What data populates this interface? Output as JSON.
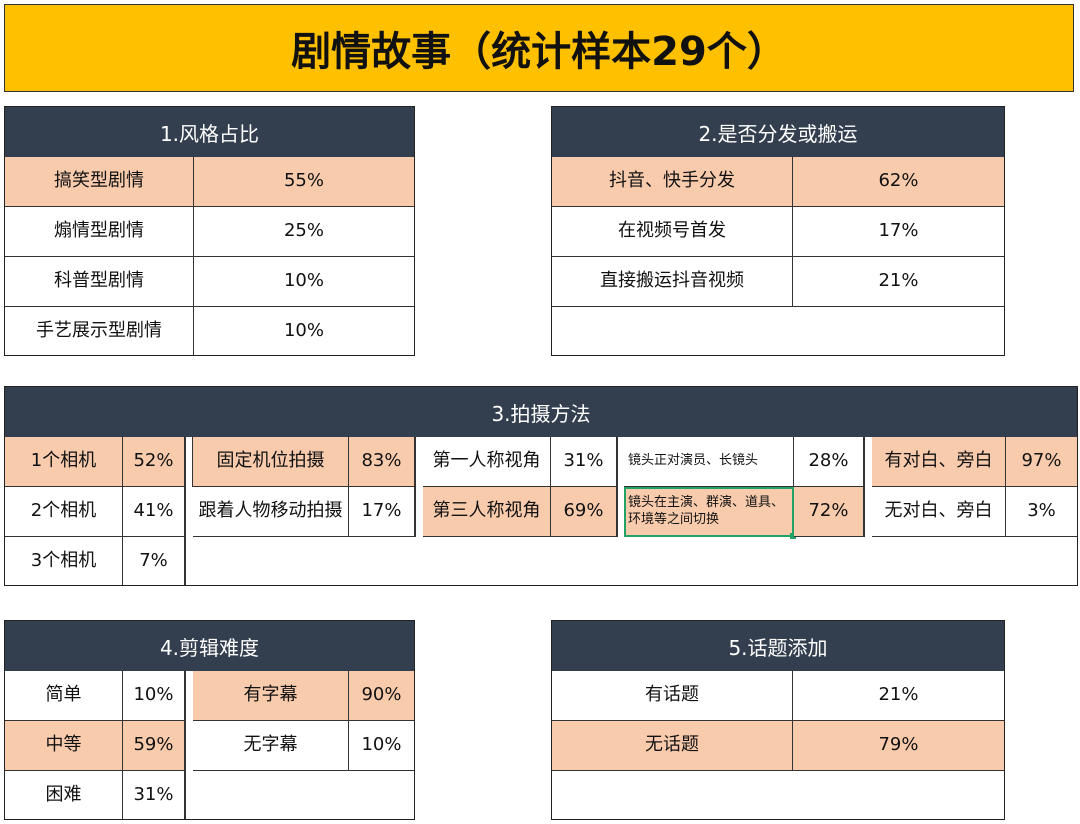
{
  "title": "剧情故事（统计样本29个）",
  "colors": {
    "banner": "#ffc000",
    "header": "#333f4f",
    "highlight": "#f8cbad"
  },
  "sections": {
    "style": {
      "header": "1.风格占比",
      "rows": [
        {
          "label": "搞笑型剧情",
          "value": "55%"
        },
        {
          "label": "煽情型剧情",
          "value": "25%"
        },
        {
          "label": "科普型剧情",
          "value": "10%"
        },
        {
          "label": "手艺展示型剧情",
          "value": "10%"
        }
      ]
    },
    "distribution": {
      "header": "2.是否分发或搬运",
      "rows": [
        {
          "label": "抖音、快手分发",
          "value": "62%"
        },
        {
          "label": "在视频号首发",
          "value": "17%"
        },
        {
          "label": "直接搬运抖音视频",
          "value": "21%"
        }
      ]
    },
    "shooting": {
      "header": "3.拍摄方法",
      "cameras": [
        {
          "label": "1个相机",
          "value": "52%"
        },
        {
          "label": "2个相机",
          "value": "41%"
        },
        {
          "label": "3个相机",
          "value": "7%"
        }
      ],
      "positions": [
        {
          "label": "固定机位拍摄",
          "value": "83%"
        },
        {
          "label": "跟着人物移动拍摄",
          "value": "17%"
        }
      ],
      "perspective": [
        {
          "label": "第一人称视角",
          "value": "31%"
        },
        {
          "label": "第三人称视角",
          "value": "69%"
        }
      ],
      "lens": [
        {
          "label": "镜头正对演员、长镜头",
          "value": "28%"
        },
        {
          "label": "镜头在主演、群演、道具、环境等之间切换",
          "value": "72%"
        }
      ],
      "dialogue": [
        {
          "label": "有对白、旁白",
          "value": "97%"
        },
        {
          "label": "无对白、旁白",
          "value": "3%"
        }
      ]
    },
    "editing": {
      "header": "4.剪辑难度",
      "difficulty": [
        {
          "label": "简单",
          "value": "10%"
        },
        {
          "label": "中等",
          "value": "59%"
        },
        {
          "label": "困难",
          "value": "31%"
        }
      ],
      "subtitles": [
        {
          "label": "有字幕",
          "value": "90%"
        },
        {
          "label": "无字幕",
          "value": "10%"
        }
      ]
    },
    "topics": {
      "header": "5.话题添加",
      "rows": [
        {
          "label": "有话题",
          "value": "21%"
        },
        {
          "label": "无话题",
          "value": "79%"
        }
      ]
    }
  }
}
